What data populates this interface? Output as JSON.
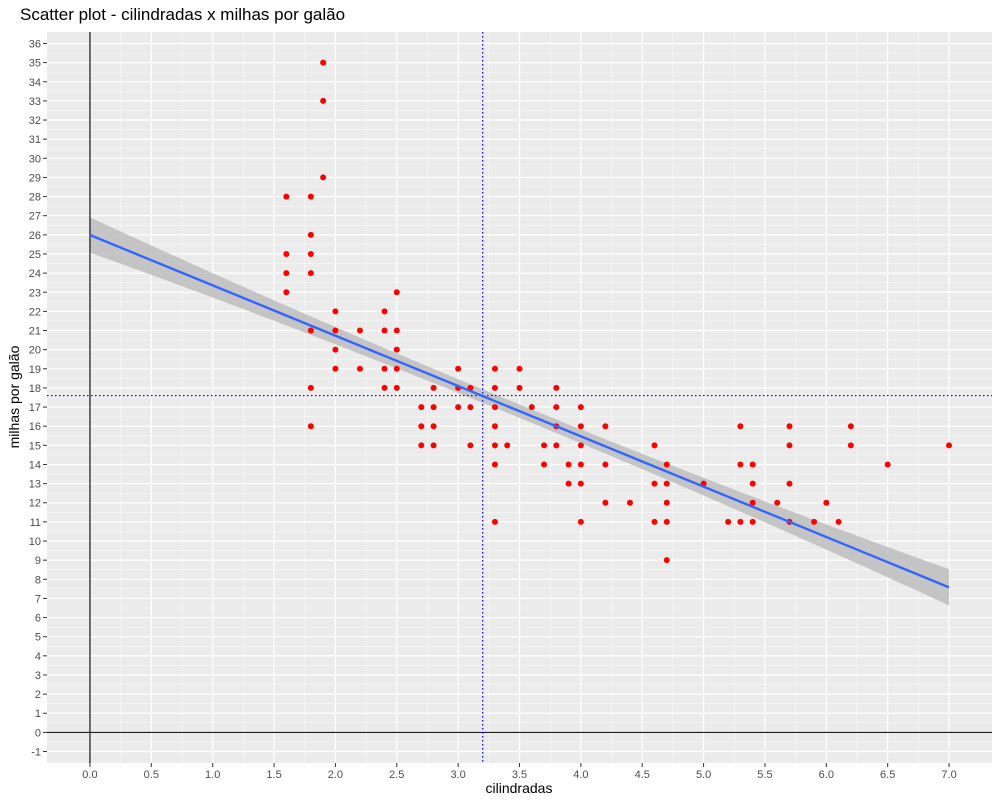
{
  "chart_data": {
    "type": "scatter",
    "title": "Scatter plot - cilindradas x milhas por galão",
    "xlabel": "cilindradas",
    "ylabel": "milhas por galão",
    "xlim": [
      -0.35,
      7.35
    ],
    "ylim": [
      -1.6,
      36.6
    ],
    "xticks": [
      0.0,
      0.5,
      1.0,
      1.5,
      2.0,
      2.5,
      3.0,
      3.5,
      4.0,
      4.5,
      5.0,
      5.5,
      6.0,
      6.5,
      7.0
    ],
    "xtick_labels": [
      "0.0",
      "0.5",
      "1.0",
      "1.5",
      "2.0",
      "2.5",
      "3.0",
      "3.5",
      "4.0",
      "4.5",
      "5.0",
      "5.5",
      "6.0",
      "6.5",
      "7.0"
    ],
    "yticks": [
      -1,
      0,
      1,
      2,
      3,
      4,
      5,
      6,
      7,
      8,
      9,
      10,
      11,
      12,
      13,
      14,
      15,
      16,
      17,
      18,
      19,
      20,
      21,
      22,
      23,
      24,
      25,
      26,
      27,
      28,
      29,
      30,
      31,
      32,
      33,
      34,
      35,
      36
    ],
    "ytick_labels": [
      "-1",
      "0",
      "1",
      "2",
      "3",
      "4",
      "5",
      "6",
      "7",
      "8",
      "9",
      "10",
      "11",
      "12",
      "13",
      "14",
      "15",
      "16",
      "17",
      "18",
      "19",
      "20",
      "21",
      "22",
      "23",
      "24",
      "25",
      "26",
      "27",
      "28",
      "29",
      "30",
      "31",
      "32",
      "33",
      "34",
      "35",
      "36"
    ],
    "grid": true,
    "colors": {
      "points": "#ff0000",
      "regression_line": "#3366ff",
      "confidence_band": "#bdbdbd",
      "mean_lines": "#0000ff",
      "zero_lines": "#000000",
      "panel_background": "#ebebeb",
      "grid": "#ffffff"
    },
    "points": [
      [
        1.6,
        28
      ],
      [
        1.6,
        25
      ],
      [
        1.6,
        24
      ],
      [
        1.6,
        23
      ],
      [
        1.8,
        28
      ],
      [
        1.8,
        26
      ],
      [
        1.8,
        25
      ],
      [
        1.8,
        24
      ],
      [
        1.8,
        21
      ],
      [
        1.8,
        18
      ],
      [
        1.8,
        16
      ],
      [
        1.9,
        35
      ],
      [
        1.9,
        33
      ],
      [
        1.9,
        29
      ],
      [
        2.0,
        22
      ],
      [
        2.0,
        21
      ],
      [
        2.0,
        20
      ],
      [
        2.0,
        19
      ],
      [
        2.2,
        21
      ],
      [
        2.2,
        19
      ],
      [
        2.4,
        22
      ],
      [
        2.4,
        21
      ],
      [
        2.4,
        19
      ],
      [
        2.4,
        18
      ],
      [
        2.5,
        23
      ],
      [
        2.5,
        21
      ],
      [
        2.5,
        20
      ],
      [
        2.5,
        19
      ],
      [
        2.5,
        18
      ],
      [
        2.7,
        17
      ],
      [
        2.7,
        16
      ],
      [
        2.7,
        15
      ],
      [
        2.8,
        18
      ],
      [
        2.8,
        17
      ],
      [
        2.8,
        16
      ],
      [
        2.8,
        15
      ],
      [
        3.0,
        19
      ],
      [
        3.0,
        18
      ],
      [
        3.0,
        17
      ],
      [
        3.1,
        18
      ],
      [
        3.1,
        17
      ],
      [
        3.1,
        15
      ],
      [
        3.3,
        19
      ],
      [
        3.3,
        18
      ],
      [
        3.3,
        17
      ],
      [
        3.3,
        16
      ],
      [
        3.3,
        15
      ],
      [
        3.3,
        14
      ],
      [
        3.3,
        11
      ],
      [
        3.4,
        15
      ],
      [
        3.5,
        19
      ],
      [
        3.5,
        18
      ],
      [
        3.6,
        17
      ],
      [
        3.7,
        15
      ],
      [
        3.7,
        14
      ],
      [
        3.8,
        18
      ],
      [
        3.8,
        17
      ],
      [
        3.8,
        16
      ],
      [
        3.8,
        15
      ],
      [
        3.9,
        14
      ],
      [
        3.9,
        13
      ],
      [
        4.0,
        17
      ],
      [
        4.0,
        16
      ],
      [
        4.0,
        15
      ],
      [
        4.0,
        14
      ],
      [
        4.0,
        13
      ],
      [
        4.0,
        11
      ],
      [
        4.2,
        16
      ],
      [
        4.2,
        14
      ],
      [
        4.2,
        12
      ],
      [
        4.4,
        12
      ],
      [
        4.6,
        15
      ],
      [
        4.6,
        13
      ],
      [
        4.6,
        11
      ],
      [
        4.7,
        14
      ],
      [
        4.7,
        13
      ],
      [
        4.7,
        12
      ],
      [
        4.7,
        11
      ],
      [
        4.7,
        9
      ],
      [
        5.0,
        13
      ],
      [
        5.2,
        11
      ],
      [
        5.3,
        16
      ],
      [
        5.3,
        14
      ],
      [
        5.3,
        11
      ],
      [
        5.4,
        14
      ],
      [
        5.4,
        13
      ],
      [
        5.4,
        12
      ],
      [
        5.4,
        11
      ],
      [
        5.6,
        12
      ],
      [
        5.7,
        16
      ],
      [
        5.7,
        15
      ],
      [
        5.7,
        13
      ],
      [
        5.7,
        11
      ],
      [
        5.9,
        11
      ],
      [
        6.0,
        12
      ],
      [
        6.1,
        11
      ],
      [
        6.2,
        16
      ],
      [
        6.2,
        15
      ],
      [
        6.5,
        14
      ],
      [
        7.0,
        15
      ]
    ],
    "regression": {
      "intercept": 25.99,
      "slope": -2.63,
      "x_range": [
        0.0,
        7.0
      ],
      "band_halfwidth_start": 0.92,
      "band_halfwidth_mid": 0.35,
      "band_halfwidth_end": 0.95,
      "band_center_x": 3.47
    },
    "mean_x": 3.2,
    "mean_y": 17.6
  }
}
